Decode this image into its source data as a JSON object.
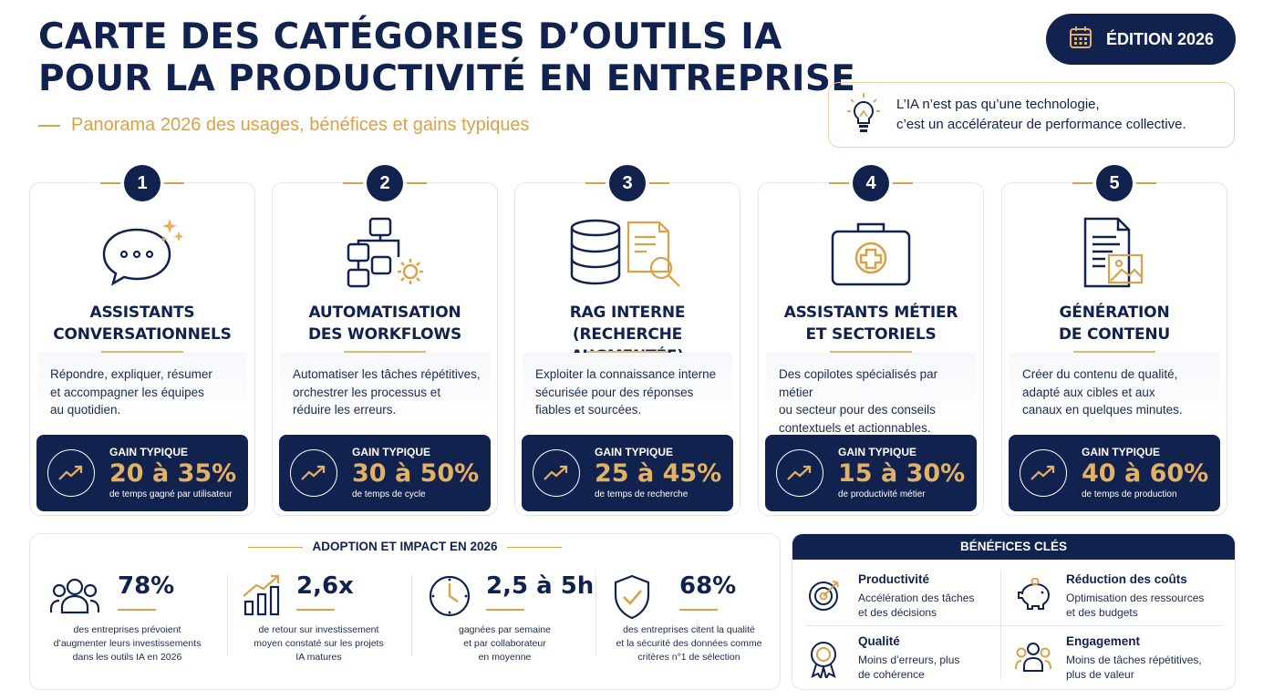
{
  "header": {
    "title_line1": "CARTE DES CATÉGORIES D’OUTILS IA",
    "title_line2": "POUR LA PRODUCTIVITÉ EN ENTREPRISE",
    "subtitle": "Panorama 2026 des usages, bénéfices et gains typiques",
    "edition_label": "ÉDITION 2026",
    "quote_line1": "L’IA n’est pas qu’une technologie,",
    "quote_line2": "c’est un accélérateur de performance collective."
  },
  "colors": {
    "navy": "#12224f",
    "gold": "#d9a24a"
  },
  "cards": [
    {
      "number": "1",
      "icon": "chat-bubble-icon",
      "title1": "ASSISTANTS",
      "title2": "CONVERSATIONNELS",
      "desc1": "Répondre, expliquer, résumer",
      "desc2": "et accompagner les équipes",
      "desc3": "au quotidien.",
      "gain_label": "GAIN TYPIQUE",
      "gain_value": "20 à 35%",
      "gain_sub": "de temps gagné par utilisateur"
    },
    {
      "number": "2",
      "icon": "workflow-icon",
      "title1": "AUTOMATISATION",
      "title2": "DES WORKFLOWS",
      "desc1": "Automatiser les tâches répétitives,",
      "desc2": "orchestrer les processus et",
      "desc3": "réduire les erreurs.",
      "gain_label": "GAIN TYPIQUE",
      "gain_value": "30 à 50%",
      "gain_sub": "de temps de cycle"
    },
    {
      "number": "3",
      "icon": "database-search-icon",
      "title1": "RAG INTERNE",
      "title2": "(RECHERCHE AUGMENTÉE)",
      "desc1": "Exploiter la connaissance interne",
      "desc2": "sécurisée pour des réponses",
      "desc3": "fiables et sourcées.",
      "gain_label": "GAIN TYPIQUE",
      "gain_value": "25 à 45%",
      "gain_sub": "de temps de recherche"
    },
    {
      "number": "4",
      "icon": "briefcase-icon",
      "title1": "ASSISTANTS MÉTIER",
      "title2": "ET SECTORIELS",
      "desc1": "Des copilotes spécialisés par métier",
      "desc2": "ou secteur pour des conseils",
      "desc3": "contextuels et actionnables.",
      "gain_label": "GAIN TYPIQUE",
      "gain_value": "15 à 30%",
      "gain_sub": "de productivité métier"
    },
    {
      "number": "5",
      "icon": "document-image-icon",
      "title1": "GÉNÉRATION",
      "title2": "DE CONTENU",
      "desc1": "Créer du contenu de qualité,",
      "desc2": "adapté aux cibles et aux",
      "desc3": "canaux en quelques minutes.",
      "gain_label": "GAIN TYPIQUE",
      "gain_value": "40 à 60%",
      "gain_sub": "de temps de production"
    }
  ],
  "adoption": {
    "heading": "ADOPTION ET IMPACT EN 2026",
    "stats": [
      {
        "icon": "people-icon",
        "value": "78%",
        "line1": "des entreprises prévoient",
        "line2": "d’augmenter leurs investissements",
        "line3": "dans les outils IA en 2026"
      },
      {
        "icon": "growth-chart-icon",
        "value": "2,6x",
        "line1": "de retour sur investissement",
        "line2": "moyen constaté sur les projets",
        "line3": "IA matures"
      },
      {
        "icon": "clock-icon",
        "value": "2,5 à 5h",
        "line1": "gagnées par semaine",
        "line2": "et par collaborateur",
        "line3": "en moyenne"
      },
      {
        "icon": "shield-check-icon",
        "value": "68%",
        "line1": "des entreprises citent la qualité",
        "line2": "et la sécurité des données comme",
        "line3": "critères n°1 de sélection"
      }
    ]
  },
  "benefits": {
    "heading": "BÉNÉFICES CLÉS",
    "items": [
      {
        "icon": "target-icon",
        "title": "Productivité",
        "line1": "Accélération des tâches",
        "line2": "et des décisions"
      },
      {
        "icon": "piggy-bank-icon",
        "title": "Réduction des coûts",
        "line1": "Optimisation des ressources",
        "line2": "et des budgets"
      },
      {
        "icon": "medal-icon",
        "title": "Qualité",
        "line1": "Moins d’erreurs, plus",
        "line2": "de cohérence"
      },
      {
        "icon": "team-icon",
        "title": "Engagement",
        "line1": "Moins de tâches répétitives,",
        "line2": "plus de valeur"
      }
    ]
  }
}
